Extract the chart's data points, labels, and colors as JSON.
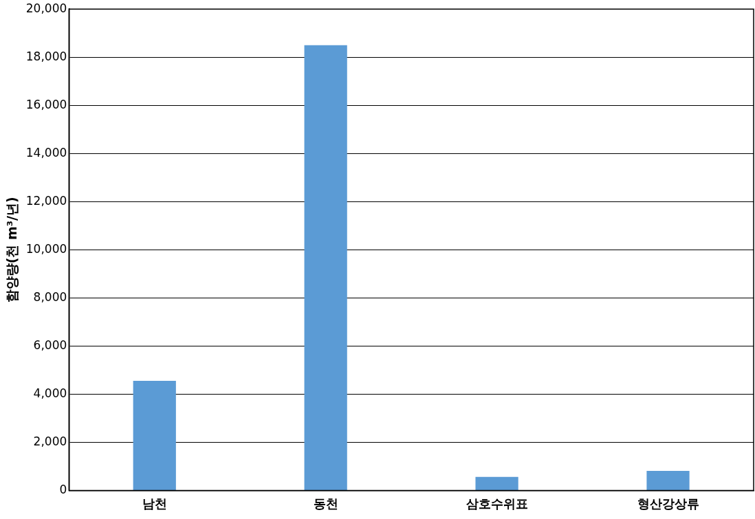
{
  "chart_data": {
    "type": "bar",
    "ylabel": "함양량(천 m³/년)",
    "categories": [
      "남천",
      "동천",
      "삼호수위표",
      "형산강상류"
    ],
    "values": [
      4550,
      18500,
      560,
      810
    ],
    "color": "#5b9bd5",
    "ylim": [
      0,
      20000
    ],
    "yticks": [
      {
        "value": 0,
        "label": "0"
      },
      {
        "value": 2000,
        "label": "2,000"
      },
      {
        "value": 4000,
        "label": "4,000"
      },
      {
        "value": 6000,
        "label": "6,000"
      },
      {
        "value": 8000,
        "label": "8,000"
      },
      {
        "value": 10000,
        "label": "10,000"
      },
      {
        "value": 12000,
        "label": "12,000"
      },
      {
        "value": 14000,
        "label": "14,000"
      },
      {
        "value": 16000,
        "label": "16,000"
      },
      {
        "value": 18000,
        "label": "18,000"
      },
      {
        "value": 20000,
        "label": "20,000"
      }
    ],
    "grid": "y"
  }
}
